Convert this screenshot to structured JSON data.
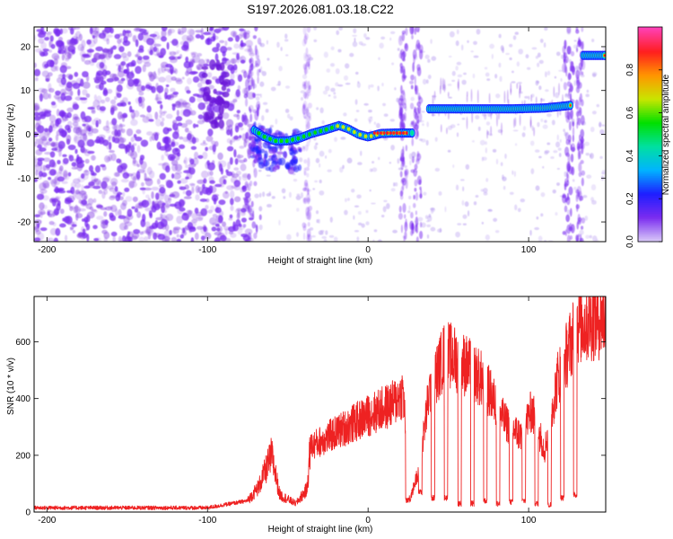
{
  "title": "S197.2026.081.03.18.C22",
  "chart_data": [
    {
      "type": "heatmap",
      "xlabel": "Height of straight line (km)",
      "ylabel": "Frequency (Hz)",
      "xlim": [
        -208,
        148
      ],
      "ylim": [
        -24.5,
        24.5
      ],
      "xticks": [
        -200,
        -100,
        0,
        100
      ],
      "yticks": [
        -20,
        -10,
        0,
        10,
        20
      ],
      "colorbar": {
        "label": "Normalized spectral amplitude",
        "range": [
          0,
          1
        ],
        "ticks": [
          "0.0",
          "0.2",
          "0.4",
          "0.6",
          "0.8"
        ],
        "colors": [
          "#d8c8f8",
          "#7a2cf0",
          "#1e1eff",
          "#00b4ff",
          "#00e0a0",
          "#00e000",
          "#c8e600",
          "#ff9600",
          "#ff1e1e",
          "#ff40b4"
        ]
      },
      "background_noise_color": "#8a48e6",
      "carrier_ridge": [
        {
          "x": -71,
          "f": 1.0
        },
        {
          "x": -65,
          "f": -0.5
        },
        {
          "x": -58,
          "f": -1.5
        },
        {
          "x": -50,
          "f": -1.5
        },
        {
          "x": -42,
          "f": -0.8
        },
        {
          "x": -35,
          "f": 0.2
        },
        {
          "x": -25,
          "f": 1.2
        },
        {
          "x": -18,
          "f": 2.0
        },
        {
          "x": -12,
          "f": 1.2
        },
        {
          "x": -6,
          "f": 0.0
        },
        {
          "x": 0,
          "f": -0.6
        },
        {
          "x": 8,
          "f": 0.2
        },
        {
          "x": 18,
          "f": 0.3
        },
        {
          "x": 28,
          "f": 0.3
        },
        {
          "x": 38,
          "f": 5.8
        },
        {
          "x": 60,
          "f": 5.8
        },
        {
          "x": 90,
          "f": 5.8
        },
        {
          "x": 110,
          "f": 6.0
        },
        {
          "x": 126,
          "f": 6.6
        },
        {
          "x": 134,
          "f": 18.0
        },
        {
          "x": 148,
          "f": 18.0
        }
      ]
    },
    {
      "type": "line",
      "xlabel": "Height of straight line (km)",
      "ylabel": "SNR (10 * v/v)",
      "xlim": [
        -208,
        148
      ],
      "ylim": [
        0,
        760
      ],
      "xticks": [
        -200,
        -100,
        0,
        100
      ],
      "yticks": [
        0,
        200,
        400,
        600
      ],
      "color": "#ee2222",
      "snr_trend": [
        {
          "x": -208,
          "y": 15
        },
        {
          "x": -100,
          "y": 15
        },
        {
          "x": -90,
          "y": 25
        },
        {
          "x": -75,
          "y": 40
        },
        {
          "x": -68,
          "y": 90
        },
        {
          "x": -60,
          "y": 200
        },
        {
          "x": -55,
          "y": 60
        },
        {
          "x": -45,
          "y": 30
        },
        {
          "x": -38,
          "y": 80
        },
        {
          "x": -36,
          "y": 230
        },
        {
          "x": -20,
          "y": 280
        },
        {
          "x": 0,
          "y": 340
        },
        {
          "x": 15,
          "y": 380
        },
        {
          "x": 22,
          "y": 420
        },
        {
          "x": 26,
          "y": 40
        },
        {
          "x": 32,
          "y": 160
        },
        {
          "x": 38,
          "y": 420
        },
        {
          "x": 48,
          "y": 560
        },
        {
          "x": 60,
          "y": 520
        },
        {
          "x": 72,
          "y": 460
        },
        {
          "x": 85,
          "y": 320
        },
        {
          "x": 95,
          "y": 270
        },
        {
          "x": 102,
          "y": 360
        },
        {
          "x": 110,
          "y": 220
        },
        {
          "x": 118,
          "y": 470
        },
        {
          "x": 124,
          "y": 560
        },
        {
          "x": 130,
          "y": 660
        },
        {
          "x": 148,
          "y": 690
        }
      ],
      "dropouts": [
        {
          "x": 24.5,
          "y": 30
        },
        {
          "x": 32.5,
          "y": 60
        },
        {
          "x": 40.5,
          "y": 40
        },
        {
          "x": 48.5,
          "y": 40
        },
        {
          "x": 57,
          "y": 20
        },
        {
          "x": 65,
          "y": 20
        },
        {
          "x": 73,
          "y": 30
        },
        {
          "x": 81,
          "y": 20
        },
        {
          "x": 89,
          "y": 25
        },
        {
          "x": 97,
          "y": 30
        },
        {
          "x": 105,
          "y": 20
        },
        {
          "x": 113,
          "y": 15
        },
        {
          "x": 121,
          "y": 40
        },
        {
          "x": 129,
          "y": 50
        }
      ]
    }
  ]
}
